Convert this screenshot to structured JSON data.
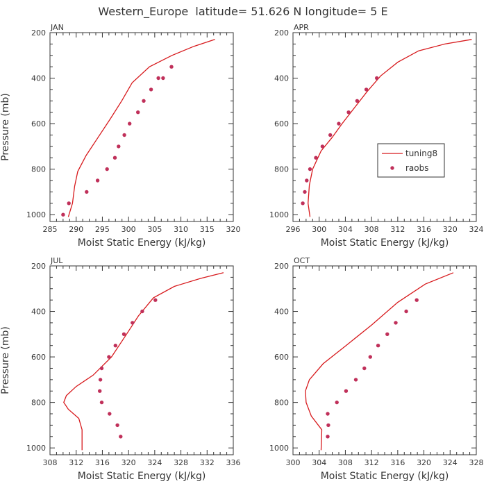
{
  "figure": {
    "title": "Western_Europe  latitude= 51.626 N longitude= 5 E"
  },
  "colors": {
    "model_line": "#d7191c",
    "raob_dots": "#c0305a",
    "text": "#333333"
  },
  "chart_data": [
    {
      "type": "line",
      "panel_title": "JAN",
      "xlabel": "Moist Static Energy (kJ/kg)",
      "ylabel": "Pressure (mb)",
      "xlim": [
        285,
        320
      ],
      "ylim": [
        1030,
        200
      ],
      "xticks": [
        285,
        290,
        295,
        300,
        305,
        310,
        315,
        320
      ],
      "yticks": [
        200,
        400,
        600,
        800,
        1000
      ],
      "grid": false,
      "series": [
        {
          "name": "tuning8",
          "kind": "line",
          "x": [
            288.5,
            289.3,
            289.7,
            290.3,
            291.9,
            294.2,
            296.5,
            298.7,
            300.7,
            304.0,
            308.3,
            312.5,
            316.5
          ],
          "y": [
            1010,
            950,
            875,
            810,
            740,
            660,
            580,
            500,
            420,
            350,
            300,
            260,
            230
          ]
        },
        {
          "name": "raobs",
          "kind": "scatter",
          "x": [
            287.5,
            288.6,
            292.0,
            294.1,
            295.9,
            297.4,
            298.1,
            299.2,
            300.2,
            301.8,
            302.9,
            304.3,
            305.7,
            306.6,
            308.2
          ],
          "y": [
            1000,
            950,
            900,
            850,
            800,
            750,
            700,
            650,
            600,
            550,
            500,
            450,
            400,
            400,
            350
          ]
        }
      ]
    },
    {
      "type": "line",
      "panel_title": "APR",
      "xlabel": "Moist Static Energy (kJ/kg)",
      "ylabel": "",
      "xlim": [
        296,
        324
      ],
      "ylim": [
        1030,
        200
      ],
      "xticks": [
        296,
        300,
        304,
        308,
        312,
        316,
        320,
        324
      ],
      "yticks": [
        200,
        400,
        600,
        800,
        1000
      ],
      "grid": false,
      "legend": {
        "placement": "right-center",
        "entries": [
          "tuning8",
          "raobs"
        ]
      },
      "series": [
        {
          "name": "tuning8",
          "kind": "line",
          "x": [
            298.6,
            298.3,
            298.5,
            299.0,
            300.3,
            302.0,
            303.5,
            305.4,
            307.3,
            309.4,
            312.0,
            315.2,
            319.2,
            323.3
          ],
          "y": [
            1010,
            950,
            870,
            800,
            720,
            660,
            600,
            530,
            460,
            390,
            330,
            280,
            250,
            230
          ]
        },
        {
          "name": "raobs",
          "kind": "scatter",
          "x": [
            297.5,
            297.8,
            298.1,
            298.6,
            299.5,
            300.5,
            301.7,
            303.0,
            304.5,
            305.8,
            307.2,
            308.8
          ],
          "y": [
            950,
            900,
            850,
            800,
            750,
            700,
            650,
            600,
            550,
            500,
            450,
            400
          ]
        }
      ]
    },
    {
      "type": "line",
      "panel_title": "JUL",
      "xlabel": "Moist Static Energy (kJ/kg)",
      "ylabel": "Pressure (mb)",
      "xlim": [
        308,
        336
      ],
      "ylim": [
        1030,
        200
      ],
      "xticks": [
        308,
        312,
        316,
        320,
        324,
        328,
        332,
        336
      ],
      "yticks": [
        200,
        400,
        600,
        800,
        1000
      ],
      "grid": false,
      "series": [
        {
          "name": "tuning8",
          "kind": "line",
          "x": [
            312.9,
            312.9,
            312.4,
            310.8,
            310.1,
            310.5,
            312.0,
            314.6,
            317.4,
            319.7,
            321.5,
            323.8,
            327.0,
            331.0,
            334.5
          ],
          "y": [
            1010,
            920,
            870,
            830,
            800,
            770,
            730,
            680,
            600,
            500,
            420,
            340,
            290,
            255,
            230
          ]
        },
        {
          "name": "raobs",
          "kind": "scatter",
          "x": [
            318.8,
            318.3,
            317.1,
            315.9,
            315.6,
            315.7,
            315.9,
            317.0,
            318.0,
            319.3,
            320.6,
            322.1,
            324.1
          ],
          "y": [
            950,
            900,
            850,
            800,
            750,
            700,
            650,
            600,
            550,
            500,
            450,
            400,
            350
          ]
        }
      ]
    },
    {
      "type": "line",
      "panel_title": "OCT",
      "xlabel": "Moist Static Energy (kJ/kg)",
      "ylabel": "",
      "xlim": [
        300,
        328
      ],
      "ylim": [
        1030,
        200
      ],
      "xticks": [
        300,
        304,
        308,
        312,
        316,
        320,
        324,
        328
      ],
      "yticks": [
        200,
        400,
        600,
        800,
        1000
      ],
      "grid": false,
      "series": [
        {
          "name": "tuning8",
          "kind": "line",
          "x": [
            304.3,
            304.4,
            302.8,
            302.0,
            301.9,
            302.5,
            304.6,
            308.1,
            312.0,
            316.0,
            320.2,
            324.5
          ],
          "y": [
            1010,
            920,
            860,
            800,
            750,
            700,
            630,
            550,
            460,
            360,
            280,
            230
          ]
        },
        {
          "name": "raobs",
          "kind": "scatter",
          "x": [
            305.3,
            305.4,
            305.3,
            306.7,
            308.1,
            309.6,
            310.9,
            311.8,
            313.0,
            314.4,
            315.7,
            317.3,
            318.9
          ],
          "y": [
            950,
            900,
            850,
            800,
            750,
            700,
            650,
            600,
            550,
            500,
            450,
            400,
            350
          ]
        }
      ]
    }
  ]
}
